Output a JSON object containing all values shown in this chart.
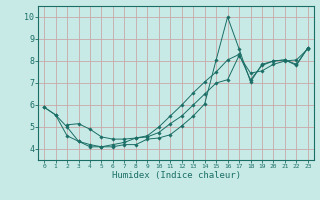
{
  "xlabel": "Humidex (Indice chaleur)",
  "xlim": [
    -0.5,
    23.5
  ],
  "ylim": [
    3.5,
    10.5
  ],
  "yticks": [
    4,
    5,
    6,
    7,
    8,
    9,
    10
  ],
  "background_color": "#c8eae6",
  "grid_color": "#c8a8a8",
  "line_color": "#1a6e66",
  "lines": [
    {
      "x": [
        0,
        1,
        2,
        3,
        4,
        5,
        6,
        7,
        8,
        9,
        10,
        11,
        12,
        13,
        14,
        15,
        16,
        17,
        18,
        19,
        20,
        21,
        22,
        23
      ],
      "y": [
        5.9,
        5.55,
        4.6,
        4.35,
        4.1,
        4.1,
        4.1,
        4.2,
        4.2,
        4.45,
        4.5,
        4.65,
        5.05,
        5.5,
        6.05,
        8.05,
        10.0,
        8.55,
        7.05,
        7.85,
        8.0,
        8.05,
        7.8,
        8.6
      ]
    },
    {
      "x": [
        2,
        3,
        4,
        5,
        6,
        7,
        8,
        9,
        10,
        11,
        12,
        13,
        14,
        15,
        16,
        17,
        18,
        19,
        20,
        21,
        22,
        23
      ],
      "y": [
        5.1,
        5.15,
        4.9,
        4.55,
        4.45,
        4.45,
        4.5,
        4.55,
        4.75,
        5.15,
        5.5,
        6.0,
        6.5,
        7.0,
        7.15,
        8.25,
        7.45,
        7.55,
        7.85,
        8.0,
        8.05,
        8.55
      ]
    },
    {
      "x": [
        0,
        1,
        2,
        3,
        4,
        5,
        6,
        7,
        8,
        9,
        10,
        11,
        12,
        13,
        14,
        15,
        16,
        17,
        18,
        19,
        20,
        21,
        22,
        23
      ],
      "y": [
        5.9,
        5.55,
        5.0,
        4.35,
        4.2,
        4.1,
        4.2,
        4.3,
        4.5,
        4.6,
        5.0,
        5.5,
        6.0,
        6.55,
        7.05,
        7.5,
        8.05,
        8.3,
        7.15,
        7.8,
        8.0,
        8.05,
        7.85,
        8.6
      ]
    }
  ]
}
